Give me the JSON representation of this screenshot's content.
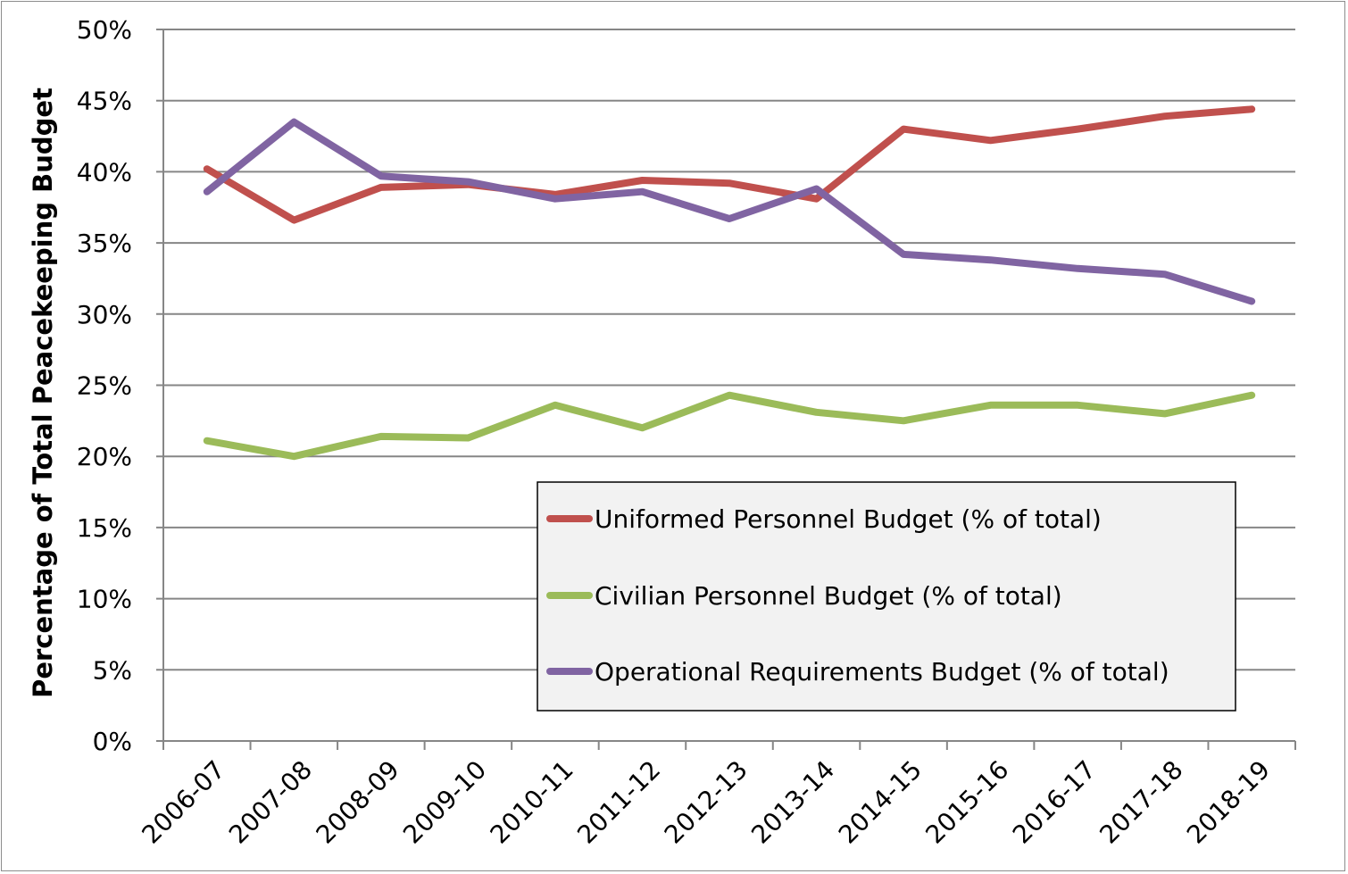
{
  "chart_data": {
    "type": "line",
    "title": "",
    "xlabel": "",
    "ylabel": "Percentage of Total Peacekeeping Budget",
    "ylim": [
      0,
      50
    ],
    "y_ticks": [
      "0%",
      "5%",
      "10%",
      "15%",
      "20%",
      "25%",
      "30%",
      "35%",
      "40%",
      "45%",
      "50%"
    ],
    "y_tick_values": [
      0,
      5,
      10,
      15,
      20,
      25,
      30,
      35,
      40,
      45,
      50
    ],
    "grid": true,
    "legend_position": "lower-right",
    "categories": [
      "2006-07",
      "2007-08",
      "2008-09",
      "2009-10",
      "2010-11",
      "2011-12",
      "2012-13",
      "2013-14",
      "2014-15",
      "2015-16",
      "2016-17",
      "2017-18",
      "2018-19"
    ],
    "series": [
      {
        "name": "Uniformed Personnel Budget (% of total)",
        "color": "#c0504d",
        "values": [
          40.2,
          36.6,
          38.9,
          39.1,
          38.4,
          39.4,
          39.2,
          38.1,
          43.0,
          42.2,
          43.0,
          43.9,
          44.4
        ]
      },
      {
        "name": "Civilian Personnel Budget (% of total)",
        "color": "#9bbb59",
        "values": [
          21.1,
          20.0,
          21.4,
          21.3,
          23.6,
          22.0,
          24.3,
          23.1,
          22.5,
          23.6,
          23.6,
          23.0,
          24.3
        ]
      },
      {
        "name": "Operational Requirements Budget (% of total)",
        "color": "#8064a2",
        "values": [
          38.6,
          43.5,
          39.7,
          39.3,
          38.1,
          38.6,
          36.7,
          38.8,
          34.2,
          33.8,
          33.2,
          32.8,
          30.9
        ]
      }
    ]
  }
}
